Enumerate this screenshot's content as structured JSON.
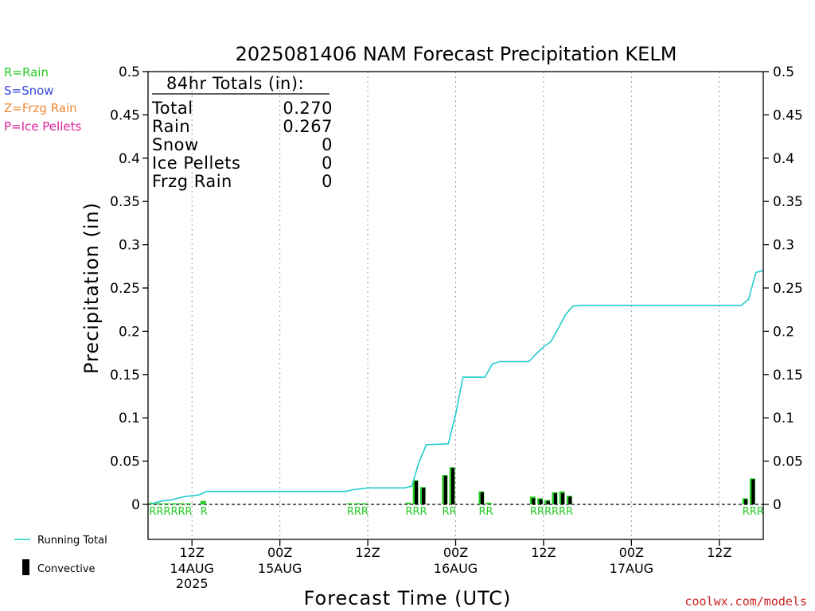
{
  "chart_data": {
    "type": "bar",
    "title": "2025081406 NAM Forecast Precipitation KELM",
    "ylabel": "Precipitation (in)",
    "xlabel": "Forecast Time (UTC)",
    "ylim": [
      0,
      0.5
    ],
    "y_ticks": [
      "0",
      "0.05",
      "0.1",
      "0.15",
      "0.2",
      "0.25",
      "0.3",
      "0.35",
      "0.4",
      "0.45",
      "0.5"
    ],
    "xlim_hours": [
      0,
      84
    ],
    "x_ticks": [
      {
        "hour": 6,
        "l1": "12Z",
        "l2": "14AUG",
        "l3": "2025"
      },
      {
        "hour": 18,
        "l1": "00Z",
        "l2": "15AUG",
        "l3": ""
      },
      {
        "hour": 30,
        "l1": "12Z",
        "l2": "",
        "l3": ""
      },
      {
        "hour": 42,
        "l1": "00Z",
        "l2": "16AUG",
        "l3": ""
      },
      {
        "hour": 54,
        "l1": "12Z",
        "l2": "",
        "l3": ""
      },
      {
        "hour": 66,
        "l1": "00Z",
        "l2": "17AUG",
        "l3": ""
      },
      {
        "hour": 78,
        "l1": "12Z",
        "l2": "",
        "l3": ""
      }
    ],
    "grid": "vertical dotted",
    "series": [
      {
        "name": "Rain",
        "color": "#22cc22",
        "points": [
          [
            1,
            0.002
          ],
          [
            2,
            0.001
          ],
          [
            3,
            0.001
          ],
          [
            4,
            0.001
          ],
          [
            5,
            0.001
          ],
          [
            6,
            0.001
          ],
          [
            8,
            0.004
          ],
          [
            28,
            0.001
          ],
          [
            29,
            0.001
          ],
          [
            30,
            0.001
          ],
          [
            36,
            0.002
          ],
          [
            37,
            0.028
          ],
          [
            38,
            0.02
          ],
          [
            41,
            0.034
          ],
          [
            42,
            0.043
          ],
          [
            46,
            0.015
          ],
          [
            47,
            0.002
          ],
          [
            53,
            0.009
          ],
          [
            54,
            0.007
          ],
          [
            55,
            0.005
          ],
          [
            56,
            0.014
          ],
          [
            57,
            0.015
          ],
          [
            58,
            0.01
          ],
          [
            82,
            0.007
          ],
          [
            83,
            0.03
          ]
        ]
      },
      {
        "name": "Convective",
        "color": "#000000",
        "points": [
          [
            37,
            0.027
          ],
          [
            38,
            0.019
          ],
          [
            41,
            0.033
          ],
          [
            42,
            0.042
          ],
          [
            46,
            0.014
          ],
          [
            53,
            0.007
          ],
          [
            54,
            0.006
          ],
          [
            55,
            0.004
          ],
          [
            56,
            0.013
          ],
          [
            57,
            0.013
          ],
          [
            58,
            0.009
          ],
          [
            82,
            0.006
          ],
          [
            83,
            0.029
          ]
        ]
      },
      {
        "name": "Running Total",
        "color": "#22cccc",
        "points": [
          [
            1,
            0.002
          ],
          [
            2,
            0.004
          ],
          [
            3,
            0.005
          ],
          [
            4,
            0.007
          ],
          [
            5,
            0.009
          ],
          [
            6,
            0.01
          ],
          [
            7,
            0.011
          ],
          [
            8,
            0.015
          ],
          [
            27,
            0.015
          ],
          [
            28,
            0.017
          ],
          [
            29,
            0.018
          ],
          [
            30,
            0.019
          ],
          [
            35,
            0.019
          ],
          [
            36,
            0.021
          ],
          [
            37,
            0.049
          ],
          [
            38,
            0.069
          ],
          [
            41,
            0.07
          ],
          [
            42,
            0.104
          ],
          [
            43,
            0.147
          ],
          [
            46,
            0.147
          ],
          [
            47,
            0.162
          ],
          [
            48,
            0.165
          ],
          [
            52,
            0.165
          ],
          [
            53,
            0.174
          ],
          [
            54,
            0.182
          ],
          [
            55,
            0.188
          ],
          [
            56,
            0.203
          ],
          [
            57,
            0.219
          ],
          [
            58,
            0.229
          ],
          [
            59,
            0.23
          ],
          [
            81,
            0.23
          ],
          [
            82,
            0.237
          ],
          [
            83,
            0.268
          ],
          [
            84,
            0.27
          ]
        ]
      }
    ],
    "markers": [
      {
        "hour": 1,
        "text": "RRRRRR"
      },
      {
        "hour": 8,
        "text": "R"
      },
      {
        "hour": 28,
        "text": "RRR"
      },
      {
        "hour": 36,
        "text": "RRR"
      },
      {
        "hour": 41,
        "text": "RR"
      },
      {
        "hour": 46,
        "text": "RR"
      },
      {
        "hour": 53,
        "text": "RRRRRR"
      },
      {
        "hour": 82,
        "text": "RRR"
      }
    ],
    "totals": {
      "heading": "84hr Totals (in):",
      "rows": [
        {
          "label": "Total",
          "value": "0.270"
        },
        {
          "label": "Rain",
          "value": "0.267"
        },
        {
          "label": "Snow",
          "value": "0"
        },
        {
          "label": "Ice Pellets",
          "value": "0"
        },
        {
          "label": "Frzg Rain",
          "value": "0"
        }
      ]
    },
    "legend_types": [
      {
        "text": "R=Rain",
        "color": "#22cc22"
      },
      {
        "text": "S=Snow",
        "color": "#3344dd"
      },
      {
        "text": "Z=Frzg Rain",
        "color": "#ee8833"
      },
      {
        "text": "P=Ice Pellets",
        "color": "#dd2299"
      }
    ],
    "legend_lines": {
      "running_total": "Running Total",
      "convective": "Convective"
    },
    "credit": "coolwx.com/models"
  }
}
